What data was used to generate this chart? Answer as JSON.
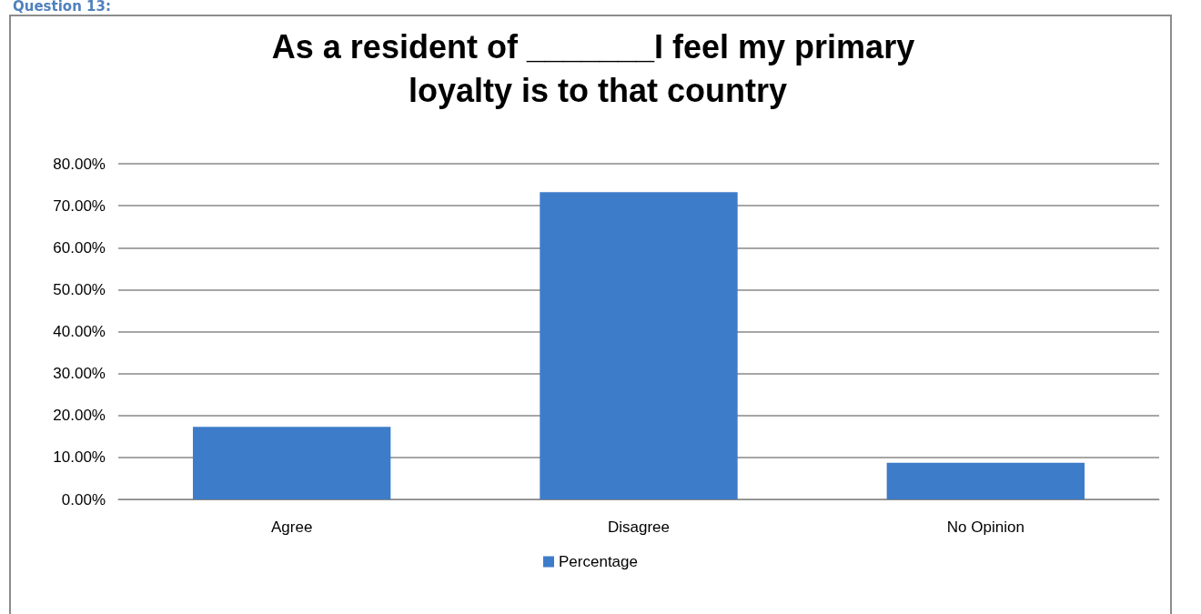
{
  "chart_data": {
    "type": "bar",
    "title": "As a resident of _______I feel my primary loyalty is to that country",
    "annotations": [
      "Question 13:"
    ],
    "categories": [
      "Agree",
      "Disagree",
      "No Opinion"
    ],
    "series": [
      {
        "name": "Percentage",
        "color": "#3d7cc9",
        "values": [
          17.3,
          73.2,
          8.7
        ]
      }
    ],
    "ylim": [
      0,
      80
    ],
    "yticks": [
      {
        "value": 0,
        "label": "0.00%"
      },
      {
        "value": 10,
        "label": "10.00%"
      },
      {
        "value": 20,
        "label": "20.00%"
      },
      {
        "value": 30,
        "label": "30.00%"
      },
      {
        "value": 40,
        "label": "40.00%"
      },
      {
        "value": 50,
        "label": "50.00%"
      },
      {
        "value": 60,
        "label": "60.00%"
      },
      {
        "value": 70,
        "label": "70.00%"
      },
      {
        "value": 80,
        "label": "80.00%"
      }
    ],
    "grid": "y",
    "legend": "bottom"
  }
}
